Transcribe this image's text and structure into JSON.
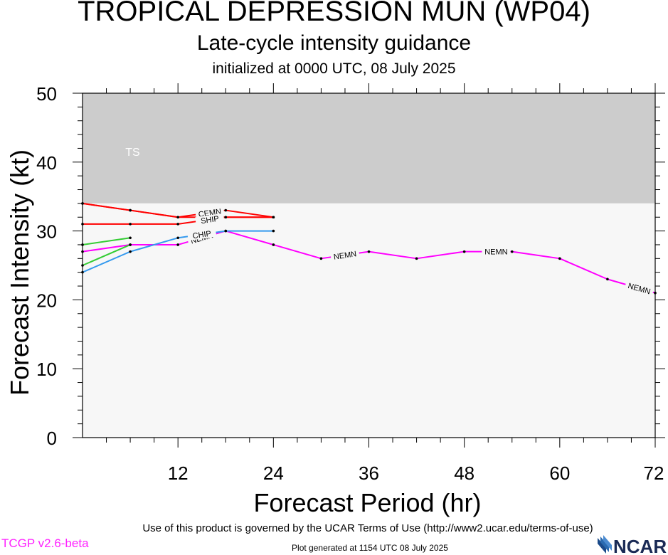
{
  "header": {
    "title": "TROPICAL DEPRESSION MUN (WP04)",
    "subtitle": "Late-cycle intensity guidance",
    "init": "initialized at 0000 UTC, 08 July 2025"
  },
  "footer": {
    "terms": "Use of this product is governed by the UCAR Terms of Use (http://www2.ucar.edu/terms-of-use)",
    "version": "TCGP v2.6-beta",
    "generated": "Plot generated at 1154 UTC   08 July 2025",
    "logo_text": "NCAR"
  },
  "chart_data": {
    "type": "line",
    "title": "TROPICAL DEPRESSION MUN (WP04)",
    "subtitle": "Late-cycle intensity guidance",
    "xlabel": "Forecast Period (hr)",
    "ylabel": "Forecast Intensity (kt)",
    "xlim": [
      0,
      72
    ],
    "ylim": [
      0,
      50
    ],
    "xticks": [
      12,
      24,
      36,
      48,
      60,
      72
    ],
    "yticks": [
      0,
      10,
      20,
      30,
      40,
      50
    ],
    "bands": [
      {
        "label": "TS",
        "from": 34,
        "to": 50,
        "color": "#cccccc"
      },
      {
        "label": "",
        "from": 0,
        "to": 34,
        "color": "#f7f7f7"
      }
    ],
    "series": [
      {
        "name": "NEMN",
        "color": "#ff00ff",
        "x": [
          0,
          6,
          12,
          18,
          24,
          30,
          36,
          42,
          48,
          54,
          60,
          66,
          72
        ],
        "y": [
          27,
          28,
          28,
          30,
          28,
          26,
          27,
          26,
          27,
          27,
          26,
          23,
          21
        ],
        "labels_at": [
          15,
          33,
          52,
          70
        ]
      },
      {
        "name": "CEMN",
        "color": "#ff0000",
        "x": [
          0,
          6,
          12,
          18,
          24
        ],
        "y": [
          34,
          33,
          32,
          33,
          32
        ],
        "labels_at": [
          16
        ]
      },
      {
        "name": "SHIP",
        "color": "#ff0000",
        "x": [
          0,
          6,
          12,
          18,
          24
        ],
        "y": [
          31,
          31,
          31,
          32,
          32
        ],
        "labels_at": [
          16
        ]
      },
      {
        "name": "",
        "color": "#ff0000",
        "x": [
          0,
          6,
          12,
          18,
          24
        ],
        "y": [
          34,
          33,
          32,
          32,
          32
        ],
        "labels_at": []
      },
      {
        "name": "CHIP",
        "color": "#3399ee",
        "x": [
          0,
          6,
          12,
          18,
          24
        ],
        "y": [
          24,
          27,
          29,
          30,
          30
        ],
        "labels_at": [
          15
        ]
      },
      {
        "name": "",
        "color": "#33cc33",
        "x": [
          0,
          6
        ],
        "y": [
          28,
          29
        ],
        "labels_at": []
      },
      {
        "name": "",
        "color": "#33cc33",
        "x": [
          0,
          6
        ],
        "y": [
          25,
          28
        ],
        "labels_at": []
      }
    ],
    "grid": false,
    "legend": "none"
  }
}
